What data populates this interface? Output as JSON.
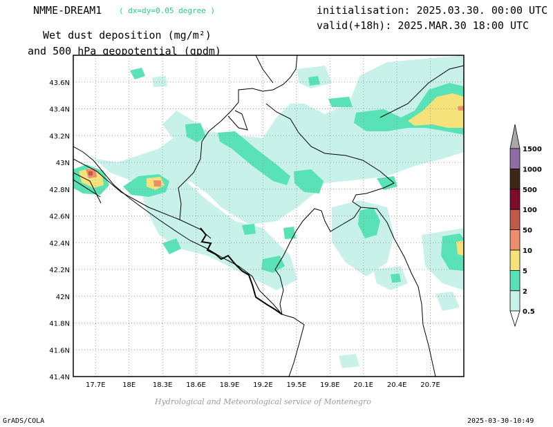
{
  "header": {
    "model": "NMME-DREAM1",
    "resolution": "( dx=dy=0.05 degree )",
    "init": "initialisation: 2025.03.30. 00:00 UTC",
    "valid": "valid(+18h): 2025.MAR.30 18:00 UTC",
    "title_line1": "Wet dust deposition (mg/m²)",
    "title_line2": "and 500 hPa geopotential (gpdm)"
  },
  "map": {
    "lon_labels": [
      "17.7E",
      "18E",
      "18.3E",
      "18.6E",
      "18.9E",
      "19.2E",
      "19.5E",
      "19.8E",
      "20.1E",
      "20.4E",
      "20.7E"
    ],
    "lat_labels": [
      "43.6N",
      "43.4N",
      "43.2N",
      "43N",
      "42.8N",
      "42.6N",
      "42.4N",
      "42.2N",
      "42N",
      "41.8N",
      "41.6N",
      "41.4N"
    ],
    "lon_range": [
      17.5,
      21.0
    ],
    "lat_range": [
      41.4,
      43.8
    ]
  },
  "legend": {
    "levels": [
      "0.5",
      "2",
      "5",
      "10",
      "50",
      "100",
      "500",
      "1000",
      "1500"
    ],
    "colors": {
      "lt0.5": "#ffffff",
      "0.5-2": "#c8f1ea",
      "2-5": "#58e2b6",
      "5-10": "#f5e27a",
      "10-50": "#ee8f6c",
      "50-100": "#c25a48",
      "100-500": "#7d0b2c",
      "500-1000": "#3e2716",
      "1000-1500": "#8e6da6",
      "gt1500": "#a8a8a8"
    }
  },
  "footer": {
    "left": "GrADS/COLA",
    "right": "2025-03-30-10:49",
    "credit": "Hydrological and Meteorological service of Montenegro"
  }
}
